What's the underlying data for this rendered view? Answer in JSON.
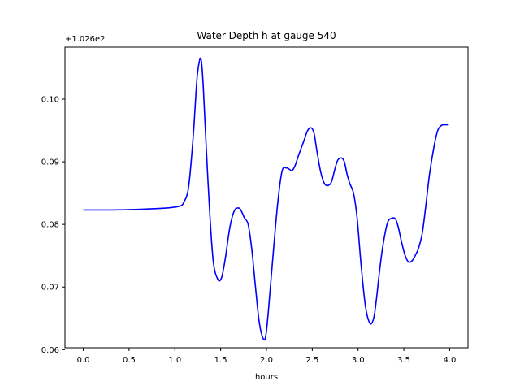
{
  "chart_data": {
    "type": "line",
    "title": "Water Depth h at gauge 540",
    "xlabel": "hours",
    "ylabel": "",
    "y_offset_label": "+1.026e2",
    "xlim": [
      -0.2,
      4.2
    ],
    "ylim": [
      0.0603,
      0.1083
    ],
    "x_ticks": [
      0.0,
      0.5,
      1.0,
      1.5,
      2.0,
      2.5,
      3.0,
      3.5,
      4.0
    ],
    "x_tick_labels": [
      "0.0",
      "0.5",
      "1.0",
      "1.5",
      "2.0",
      "2.5",
      "3.0",
      "3.5",
      "4.0"
    ],
    "y_ticks": [
      0.06,
      0.07,
      0.08,
      0.09,
      0.1
    ],
    "y_tick_labels": [
      "0.06",
      "0.07",
      "0.08",
      "0.09",
      "0.10"
    ],
    "grid": false,
    "line_color": "#0000ff",
    "series": [
      {
        "x": [
          0.0,
          0.3,
          0.6,
          0.9,
          1.05,
          1.1,
          1.15,
          1.2,
          1.24,
          1.27,
          1.29,
          1.31,
          1.34,
          1.38,
          1.42,
          1.47,
          1.51,
          1.55,
          1.6,
          1.65,
          1.7,
          1.73,
          1.76,
          1.8,
          1.84,
          1.88,
          1.92,
          1.96,
          1.99,
          2.02,
          2.06,
          2.12,
          2.17,
          2.22,
          2.25,
          2.28,
          2.31,
          2.35,
          2.4,
          2.45,
          2.49,
          2.52,
          2.55,
          2.59,
          2.63,
          2.67,
          2.71,
          2.75,
          2.78,
          2.82,
          2.85,
          2.88,
          2.91,
          2.95,
          2.99,
          3.03,
          3.08,
          3.13,
          3.17,
          3.2,
          3.23,
          3.27,
          3.32,
          3.37,
          3.41,
          3.44,
          3.47,
          3.51,
          3.55,
          3.59,
          3.63,
          3.66,
          3.7,
          3.74,
          3.78,
          3.83,
          3.87,
          3.91,
          3.94,
          3.97,
          3.99
        ],
        "y": [
          0.0823,
          0.0823,
          0.0824,
          0.0826,
          0.0829,
          0.0836,
          0.086,
          0.094,
          0.103,
          0.1062,
          0.106,
          0.102,
          0.093,
          0.082,
          0.074,
          0.0712,
          0.0715,
          0.0745,
          0.0795,
          0.0822,
          0.0826,
          0.082,
          0.081,
          0.08,
          0.076,
          0.07,
          0.0645,
          0.0619,
          0.062,
          0.066,
          0.073,
          0.083,
          0.0885,
          0.089,
          0.0888,
          0.0886,
          0.0893,
          0.091,
          0.093,
          0.095,
          0.0954,
          0.0945,
          0.0918,
          0.0885,
          0.0866,
          0.0862,
          0.0868,
          0.089,
          0.0903,
          0.0906,
          0.09,
          0.088,
          0.0865,
          0.085,
          0.081,
          0.074,
          0.067,
          0.0642,
          0.065,
          0.068,
          0.072,
          0.0765,
          0.0802,
          0.081,
          0.0808,
          0.0795,
          0.0775,
          0.0752,
          0.074,
          0.0742,
          0.0752,
          0.0762,
          0.0785,
          0.083,
          0.088,
          0.0925,
          0.095,
          0.0958,
          0.0959,
          0.0959,
          0.0959
        ]
      }
    ]
  }
}
